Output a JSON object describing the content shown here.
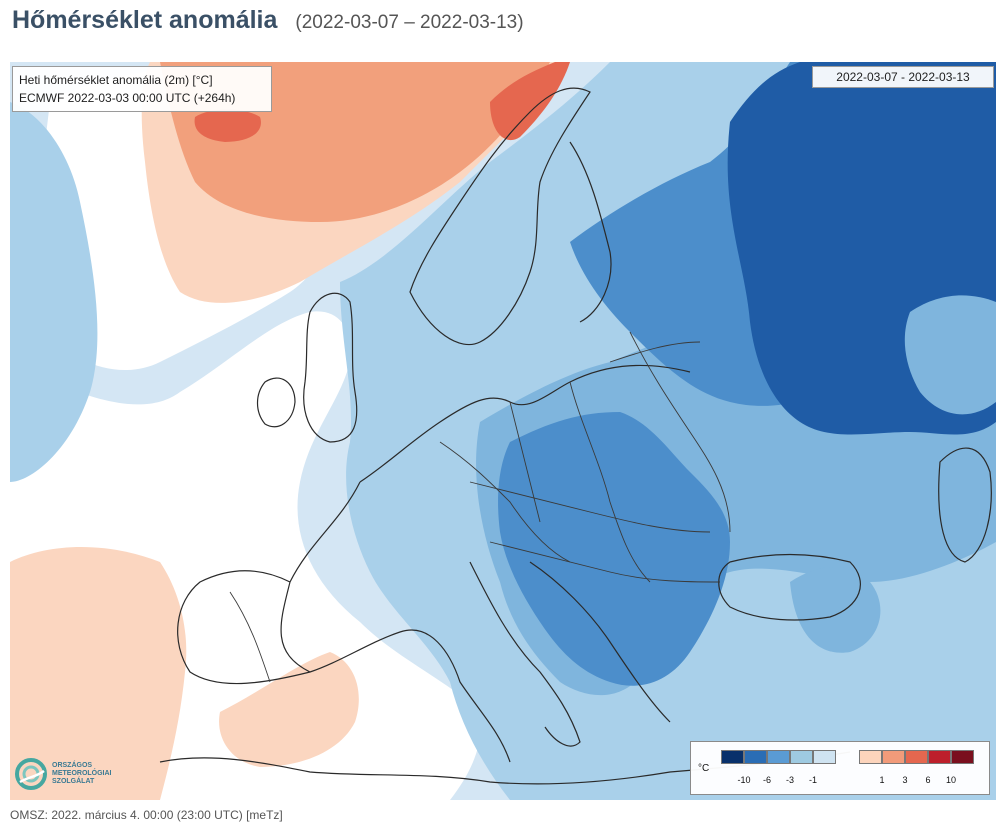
{
  "header": {
    "title": "Hőmérséklet anomália",
    "date_range": "(2022-03-07 – 2022-03-13)"
  },
  "map": {
    "info_line1": "Heti hőmérséklet anomália (2m) [°C]",
    "info_line2": "ECMWF 2022-03-03 00:00 UTC (+264h)",
    "date_label": "2022-03-07 - 2022-03-13"
  },
  "logo": {
    "line1": "ORSZÁGOS",
    "line2": "METEOROLÓGIAI",
    "line3": "SZOLGÁLAT",
    "icon": "omsz-logo-icon"
  },
  "legend": {
    "unit": "°C",
    "cold_colors": [
      "#08306b",
      "#2a6db5",
      "#5a9bd4",
      "#9ecae1",
      "#cfe3f1"
    ],
    "warm_colors": [
      "#fcd4bc",
      "#f29b7a",
      "#e5674f",
      "#bd1f2b",
      "#7a0f1e"
    ],
    "cold_ticks": [
      "-10",
      "-6",
      "-3",
      "-1"
    ],
    "warm_ticks": [
      "1",
      "3",
      "6",
      "10"
    ]
  },
  "footer": {
    "text": "OMSZ: 2022. március 4. 00:00 (23:00  UTC)  [meTz]"
  }
}
